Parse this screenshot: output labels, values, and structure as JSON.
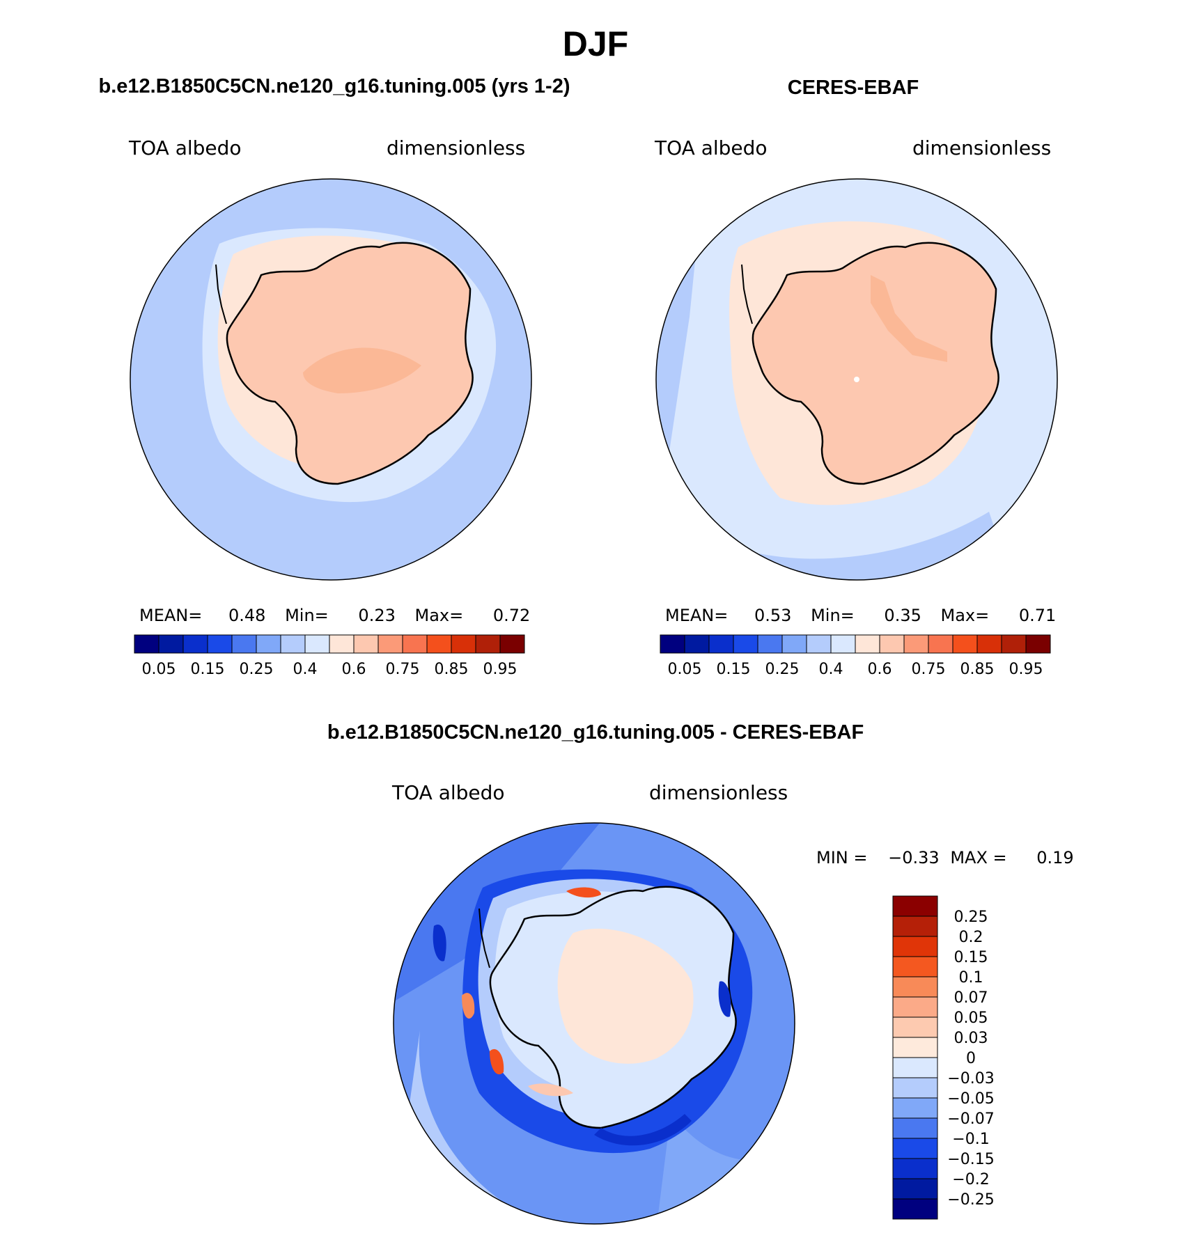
{
  "page_title": "DJF",
  "panels": {
    "model": {
      "title": "b.e12.B1850C5CN.ne120_g16.tuning.005 (yrs 1-2)",
      "variable": "TOA albedo",
      "units": "dimensionless",
      "stats": {
        "mean_label": "MEAN=",
        "mean": "0.48",
        "min_label": "Min=",
        "min": "0.23",
        "max_label": "Max=",
        "max": "0.72"
      }
    },
    "obs": {
      "title": "CERES-EBAF",
      "variable": "TOA albedo",
      "units": "dimensionless",
      "stats": {
        "mean_label": "MEAN=",
        "mean": "0.53",
        "min_label": "Min=",
        "min": "0.35",
        "max_label": "Max=",
        "max": "0.71"
      }
    },
    "diff": {
      "title": "b.e12.B1850C5CN.ne120_g16.tuning.005 - CERES-EBAF",
      "variable": "TOA albedo",
      "units": "dimensionless",
      "stats": {
        "min_label": "MIN =",
        "min": "−0.33",
        "max_label": "MAX =",
        "max": "0.19"
      }
    }
  },
  "colorbar_abs": {
    "colors": [
      "#00007f",
      "#001aa0",
      "#0a2fcc",
      "#1a4ae8",
      "#4a78f0",
      "#80a8f8",
      "#b4ccfc",
      "#dae8fe",
      "#fee6d8",
      "#fdc8b0",
      "#fb9a78",
      "#f87450",
      "#f4501c",
      "#d83008",
      "#b02008",
      "#7a0000"
    ],
    "labels": [
      "0.05",
      "0.15",
      "0.25",
      "0.4",
      "0.6",
      "0.75",
      "0.85",
      "0.95"
    ]
  },
  "colorbar_diff": {
    "colors": [
      "#8b0000",
      "#b52008",
      "#e03508",
      "#f45820",
      "#f88a58",
      "#fbaa88",
      "#fdcab0",
      "#feeadc",
      "#dae8fe",
      "#b4ccfc",
      "#80a8f8",
      "#4a78f0",
      "#1a4ae8",
      "#0a2fcc",
      "#001aa0",
      "#00007f"
    ],
    "labels": [
      "0.25",
      "0.2",
      "0.15",
      "0.1",
      "0.07",
      "0.05",
      "0.03",
      "0",
      "−0.03",
      "−0.05",
      "−0.07",
      "−0.1",
      "−0.15",
      "−0.2",
      "−0.25"
    ]
  }
}
